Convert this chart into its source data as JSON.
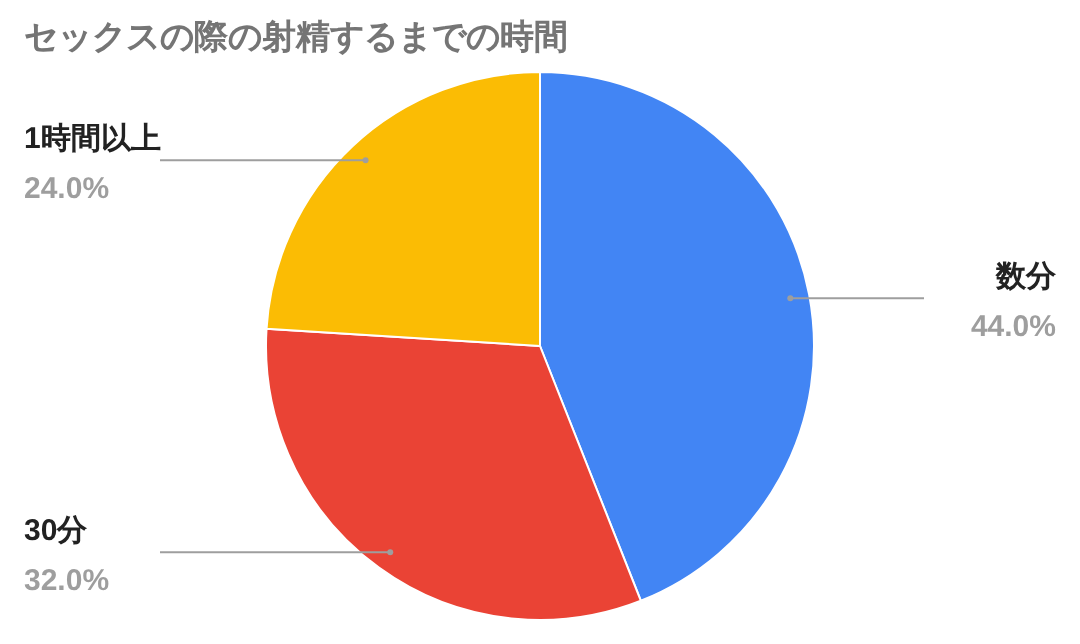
{
  "chart_data": {
    "type": "pie",
    "title": "セックスの際の射精するまでの時間",
    "categories": [
      "数分",
      "30分",
      "1時間以上"
    ],
    "values": [
      44,
      32,
      24
    ],
    "value_labels": [
      "44.0%",
      "32.0%",
      "24.0%"
    ],
    "colors": [
      "#4285f4",
      "#ea4335",
      "#fbbc04"
    ]
  }
}
